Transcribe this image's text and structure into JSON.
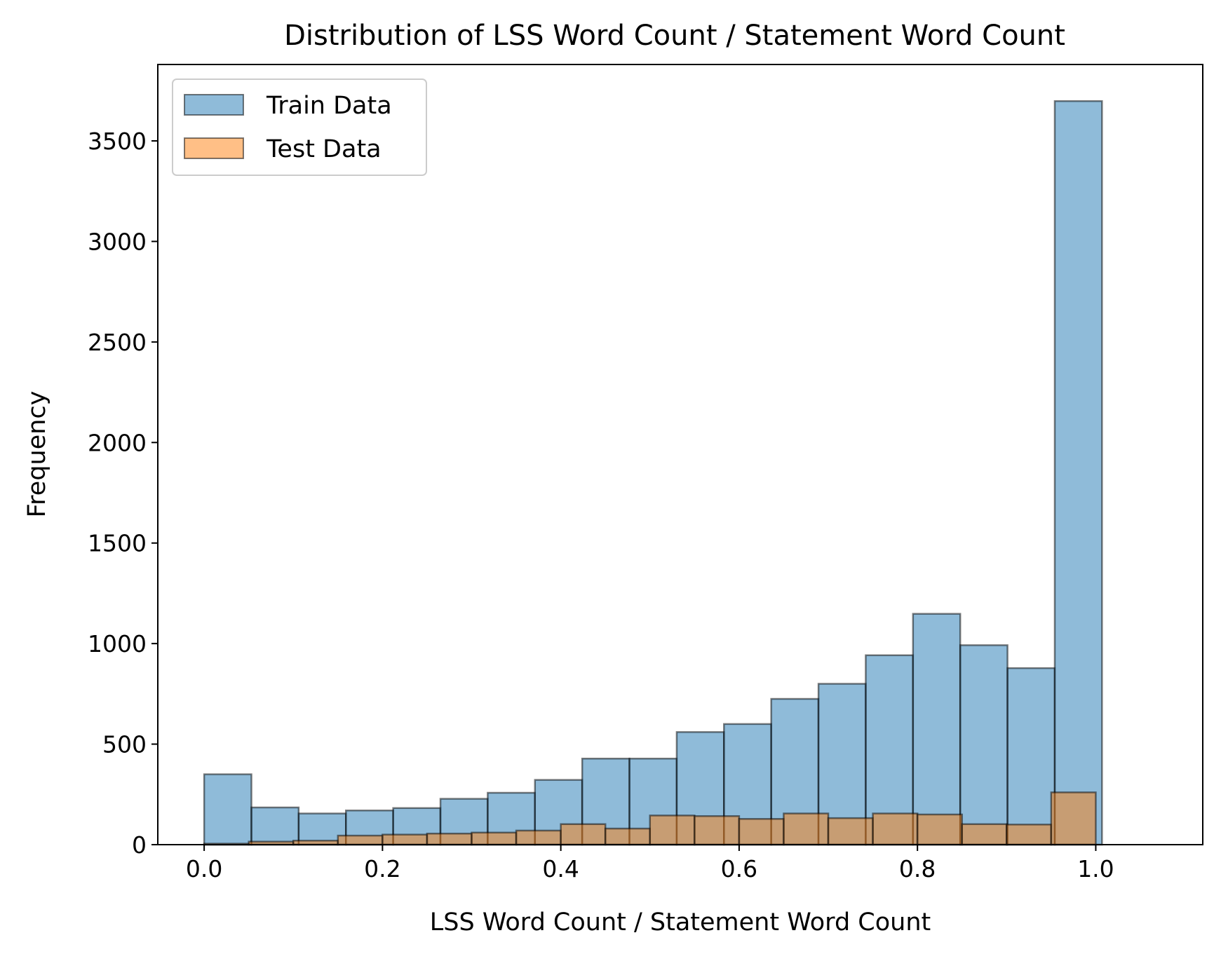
{
  "chart_data": {
    "type": "bar",
    "title": "Distribution of LSS Word Count / Statement Word Count",
    "xlabel": "LSS Word Count / Statement Word Count",
    "ylabel": "Frequency",
    "xlim": [
      -0.052,
      1.12
    ],
    "ylim": [
      0,
      3880
    ],
    "xticks": [
      {
        "value": 0.0,
        "label": "0.0"
      },
      {
        "value": 0.2,
        "label": "0.2"
      },
      {
        "value": 0.4,
        "label": "0.4"
      },
      {
        "value": 0.6,
        "label": "0.6"
      },
      {
        "value": 0.8,
        "label": "0.8"
      },
      {
        "value": 1.0,
        "label": "1.0"
      }
    ],
    "yticks": [
      {
        "value": 0,
        "label": "0"
      },
      {
        "value": 500,
        "label": "500"
      },
      {
        "value": 1000,
        "label": "1000"
      },
      {
        "value": 1500,
        "label": "1500"
      },
      {
        "value": 2000,
        "label": "2000"
      },
      {
        "value": 2500,
        "label": "2500"
      },
      {
        "value": 3000,
        "label": "3000"
      },
      {
        "value": 3500,
        "label": "3500"
      }
    ],
    "grid": false,
    "legend_position": "top-left",
    "series": [
      {
        "name": "Train Data",
        "color": "#1f77b4",
        "bins": [
          {
            "x0": 0.0,
            "x1": 0.053,
            "y": 350
          },
          {
            "x0": 0.053,
            "x1": 0.106,
            "y": 185
          },
          {
            "x0": 0.106,
            "x1": 0.159,
            "y": 155
          },
          {
            "x0": 0.159,
            "x1": 0.212,
            "y": 170
          },
          {
            "x0": 0.212,
            "x1": 0.265,
            "y": 182
          },
          {
            "x0": 0.265,
            "x1": 0.318,
            "y": 228
          },
          {
            "x0": 0.318,
            "x1": 0.371,
            "y": 258
          },
          {
            "x0": 0.371,
            "x1": 0.424,
            "y": 322
          },
          {
            "x0": 0.424,
            "x1": 0.477,
            "y": 428
          },
          {
            "x0": 0.477,
            "x1": 0.53,
            "y": 428
          },
          {
            "x0": 0.53,
            "x1": 0.583,
            "y": 560
          },
          {
            "x0": 0.583,
            "x1": 0.636,
            "y": 600
          },
          {
            "x0": 0.636,
            "x1": 0.689,
            "y": 725
          },
          {
            "x0": 0.689,
            "x1": 0.742,
            "y": 800
          },
          {
            "x0": 0.742,
            "x1": 0.795,
            "y": 942
          },
          {
            "x0": 0.795,
            "x1": 0.848,
            "y": 1148
          },
          {
            "x0": 0.848,
            "x1": 0.901,
            "y": 992
          },
          {
            "x0": 0.901,
            "x1": 0.954,
            "y": 878
          },
          {
            "x0": 0.954,
            "x1": 1.007,
            "y": 3698
          },
          {
            "x0": 1.007,
            "x1": 1.06,
            "y": 0
          }
        ]
      },
      {
        "name": "Test Data",
        "color": "#ff7f0e",
        "bins": [
          {
            "x0": 0.0,
            "x1": 0.05,
            "y": 5
          },
          {
            "x0": 0.05,
            "x1": 0.1,
            "y": 15
          },
          {
            "x0": 0.1,
            "x1": 0.15,
            "y": 20
          },
          {
            "x0": 0.15,
            "x1": 0.2,
            "y": 45
          },
          {
            "x0": 0.2,
            "x1": 0.25,
            "y": 50
          },
          {
            "x0": 0.25,
            "x1": 0.3,
            "y": 55
          },
          {
            "x0": 0.3,
            "x1": 0.35,
            "y": 60
          },
          {
            "x0": 0.35,
            "x1": 0.4,
            "y": 70
          },
          {
            "x0": 0.4,
            "x1": 0.45,
            "y": 102
          },
          {
            "x0": 0.45,
            "x1": 0.5,
            "y": 80
          },
          {
            "x0": 0.5,
            "x1": 0.55,
            "y": 145
          },
          {
            "x0": 0.55,
            "x1": 0.6,
            "y": 142
          },
          {
            "x0": 0.6,
            "x1": 0.65,
            "y": 128
          },
          {
            "x0": 0.65,
            "x1": 0.7,
            "y": 155
          },
          {
            "x0": 0.7,
            "x1": 0.75,
            "y": 132
          },
          {
            "x0": 0.75,
            "x1": 0.8,
            "y": 155
          },
          {
            "x0": 0.8,
            "x1": 0.85,
            "y": 150
          },
          {
            "x0": 0.85,
            "x1": 0.9,
            "y": 102
          },
          {
            "x0": 0.9,
            "x1": 0.95,
            "y": 100
          },
          {
            "x0": 0.95,
            "x1": 1.0,
            "y": 260
          }
        ]
      }
    ]
  }
}
